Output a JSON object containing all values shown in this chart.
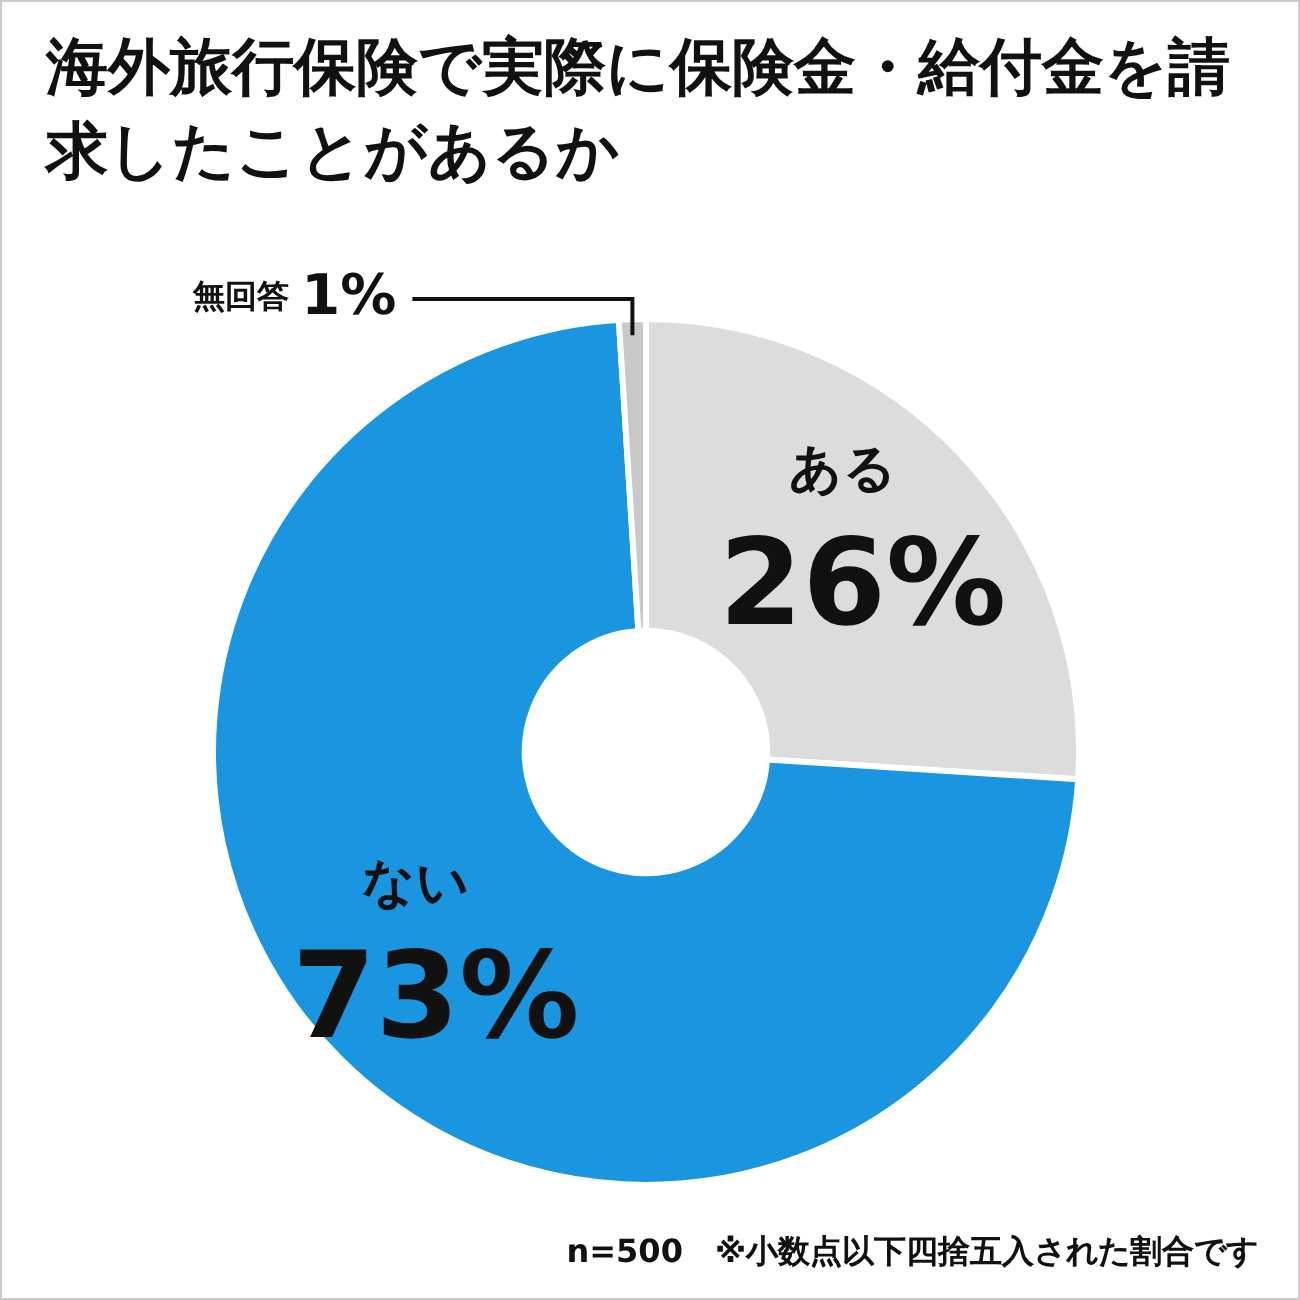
{
  "chart_data": {
    "type": "donut",
    "title": "海外旅行保険で実際に保険金・給付金を請求したことがあるか",
    "categories": [
      "ある",
      "ない",
      "無回答"
    ],
    "values": [
      26,
      73,
      1
    ],
    "colors": [
      "#dcdcdc",
      "#1a96e0",
      "#c8c8c8"
    ],
    "value_labels": [
      "26%",
      "73%",
      "1%"
    ],
    "legend": false,
    "annotations": [
      "n=500　※小数点以下四捨五入された割合です"
    ]
  }
}
